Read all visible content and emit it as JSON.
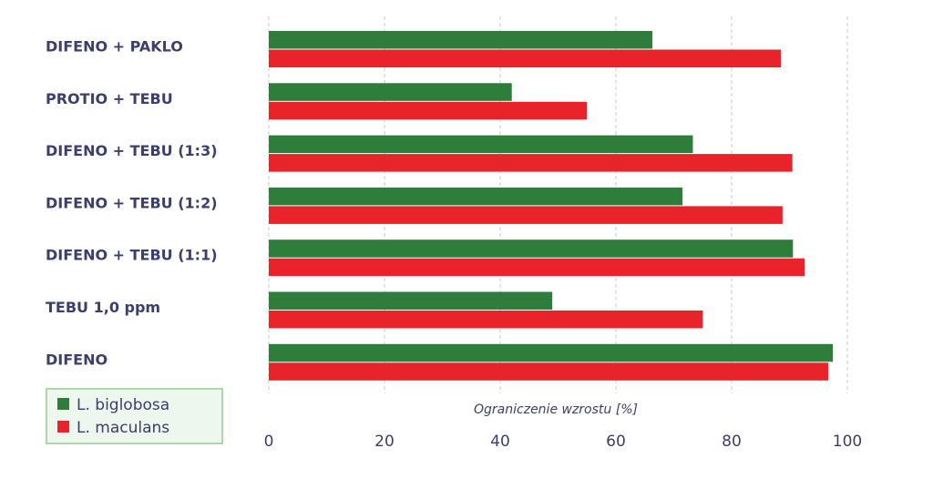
{
  "chart_data": {
    "type": "bar",
    "orientation": "horizontal",
    "categories": [
      "DIFENO + PAKLO",
      "PROTIO + TEBU",
      "DIFENO + TEBU (1:3)",
      "DIFENO + TEBU (1:2)",
      "DIFENO + TEBU (1:1)",
      "TEBU 1,0 ppm",
      "DIFENO"
    ],
    "series": [
      {
        "name": "L. biglobosa",
        "color": "#2e7d3a",
        "values": [
          66.3,
          42,
          73.3,
          71.5,
          90.6,
          49,
          97.5
        ]
      },
      {
        "name": "L. maculans",
        "color": "#e8232a",
        "values": [
          88.5,
          55,
          90.5,
          88.8,
          92.6,
          75,
          96.7
        ]
      }
    ],
    "xlabel": "Ograniczenie wzrostu [%]",
    "xlim": [
      0,
      100
    ],
    "xticks": [
      "0",
      "20",
      "40",
      "60",
      "80",
      "100"
    ],
    "grid": "vertical dashed",
    "legend_position": "bottom-left"
  }
}
